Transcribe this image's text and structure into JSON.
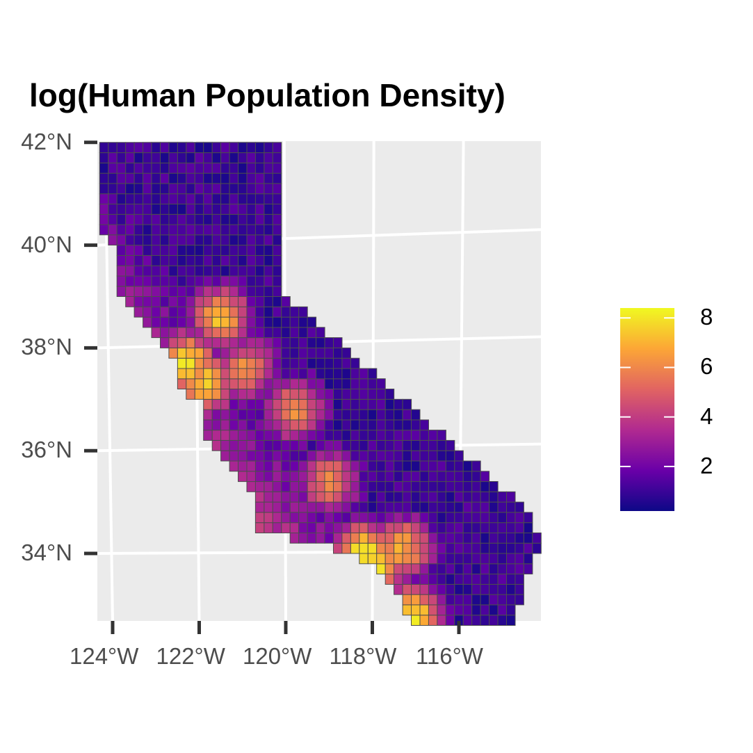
{
  "title": "log(Human Population Density)",
  "y_ticks": [
    {
      "value": 42,
      "label": "42°N"
    },
    {
      "value": 40,
      "label": "40°N"
    },
    {
      "value": 38,
      "label": "38°N"
    },
    {
      "value": 36,
      "label": "36°N"
    },
    {
      "value": 34,
      "label": "34°N"
    }
  ],
  "x_ticks": [
    {
      "value": -124,
      "label": "124°W"
    },
    {
      "value": -122,
      "label": "122°W"
    },
    {
      "value": -120,
      "label": "120°W"
    },
    {
      "value": -118,
      "label": "118°W"
    },
    {
      "value": -116,
      "label": "116°W"
    }
  ],
  "legend": {
    "title": "",
    "ticks": [
      {
        "value": 8,
        "label": "8"
      },
      {
        "value": 6,
        "label": "6"
      },
      {
        "value": 4,
        "label": "4"
      },
      {
        "value": 2,
        "label": "2"
      }
    ],
    "range": [
      0.2,
      8.4
    ],
    "palette": [
      "#0d0887",
      "#6a00a8",
      "#b12a90",
      "#e16462",
      "#fca636",
      "#f0f921"
    ],
    "na_color": "#7f7f7f"
  },
  "colors": {
    "panel_background": "#ebebeb",
    "grid_line": "#ffffff",
    "cell_border": "#4d4d4d",
    "axis_text": "#4d4d4d"
  },
  "chart_data": {
    "type": "heatmap",
    "title": "log(Human Population Density)",
    "xlabel": "",
    "ylabel": "",
    "legend_position": "right",
    "grid": true,
    "xlim": [
      -124.3,
      -114.1
    ],
    "ylim": [
      32.6,
      42.1
    ],
    "cell_size_deg": 0.2,
    "color_scale": "plasma",
    "value_range": [
      0.2,
      8.4
    ],
    "hotspots": [
      {
        "label": "",
        "lon": -122.3,
        "lat": 37.7,
        "value": 8.0
      },
      {
        "label": "",
        "lon": -121.5,
        "lat": 38.6,
        "value": 7.2
      },
      {
        "label": "",
        "lon": -121.9,
        "lat": 37.3,
        "value": 7.5
      },
      {
        "label": "",
        "lon": -118.2,
        "lat": 34.0,
        "value": 8.3
      },
      {
        "label": "",
        "lon": -117.9,
        "lat": 33.8,
        "value": 8.0
      },
      {
        "label": "",
        "lon": -117.1,
        "lat": 32.8,
        "value": 8.1
      },
      {
        "label": "",
        "lon": -119.8,
        "lat": 36.8,
        "value": 6.3
      },
      {
        "label": "",
        "lon": -119.0,
        "lat": 35.4,
        "value": 6.0
      },
      {
        "label": "",
        "lon": -117.3,
        "lat": 34.1,
        "value": 6.8
      },
      {
        "label": "",
        "lon": -120.9,
        "lat": 37.6,
        "value": 6.0
      }
    ]
  }
}
